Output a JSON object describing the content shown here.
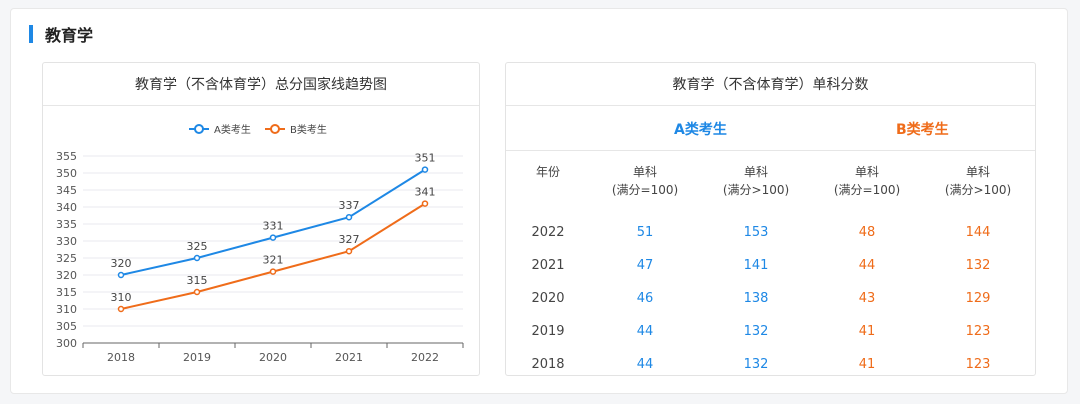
{
  "section": {
    "title": "教育学"
  },
  "left_panel": {
    "title": "教育学（不含体育学）总分国家线趋势图"
  },
  "right_panel": {
    "title": "教育学（不含体育学）单科分数",
    "group_a": "A类考生",
    "group_b": "B类考生",
    "columns": [
      {
        "line1": "年份",
        "line2": ""
      },
      {
        "line1": "单科",
        "line2": "(满分=100)"
      },
      {
        "line1": "单科",
        "line2": "(满分>100)"
      },
      {
        "line1": "单科",
        "line2": "(满分=100)"
      },
      {
        "line1": "单科",
        "line2": "(满分>100)"
      }
    ],
    "rows": [
      [
        "2022",
        "51",
        "153",
        "48",
        "144"
      ],
      [
        "2021",
        "47",
        "141",
        "44",
        "132"
      ],
      [
        "2020",
        "46",
        "138",
        "43",
        "129"
      ],
      [
        "2019",
        "44",
        "132",
        "41",
        "123"
      ],
      [
        "2018",
        "44",
        "132",
        "41",
        "123"
      ]
    ]
  },
  "chart_data": {
    "type": "line",
    "title": "教育学（不含体育学）总分国家线趋势图",
    "x": [
      "2018",
      "2019",
      "2020",
      "2021",
      "2022"
    ],
    "series": [
      {
        "name": "A类考生",
        "values": [
          320,
          325,
          331,
          337,
          351
        ],
        "color": "#1e88e5"
      },
      {
        "name": "B类考生",
        "values": [
          310,
          315,
          321,
          327,
          341
        ],
        "color": "#ef6c1a"
      }
    ],
    "ylim": [
      300,
      355
    ],
    "yticks": [
      300,
      305,
      310,
      315,
      320,
      325,
      330,
      335,
      340,
      345,
      350,
      355
    ],
    "grid": true,
    "legend": "top-center",
    "data_labels": true
  }
}
